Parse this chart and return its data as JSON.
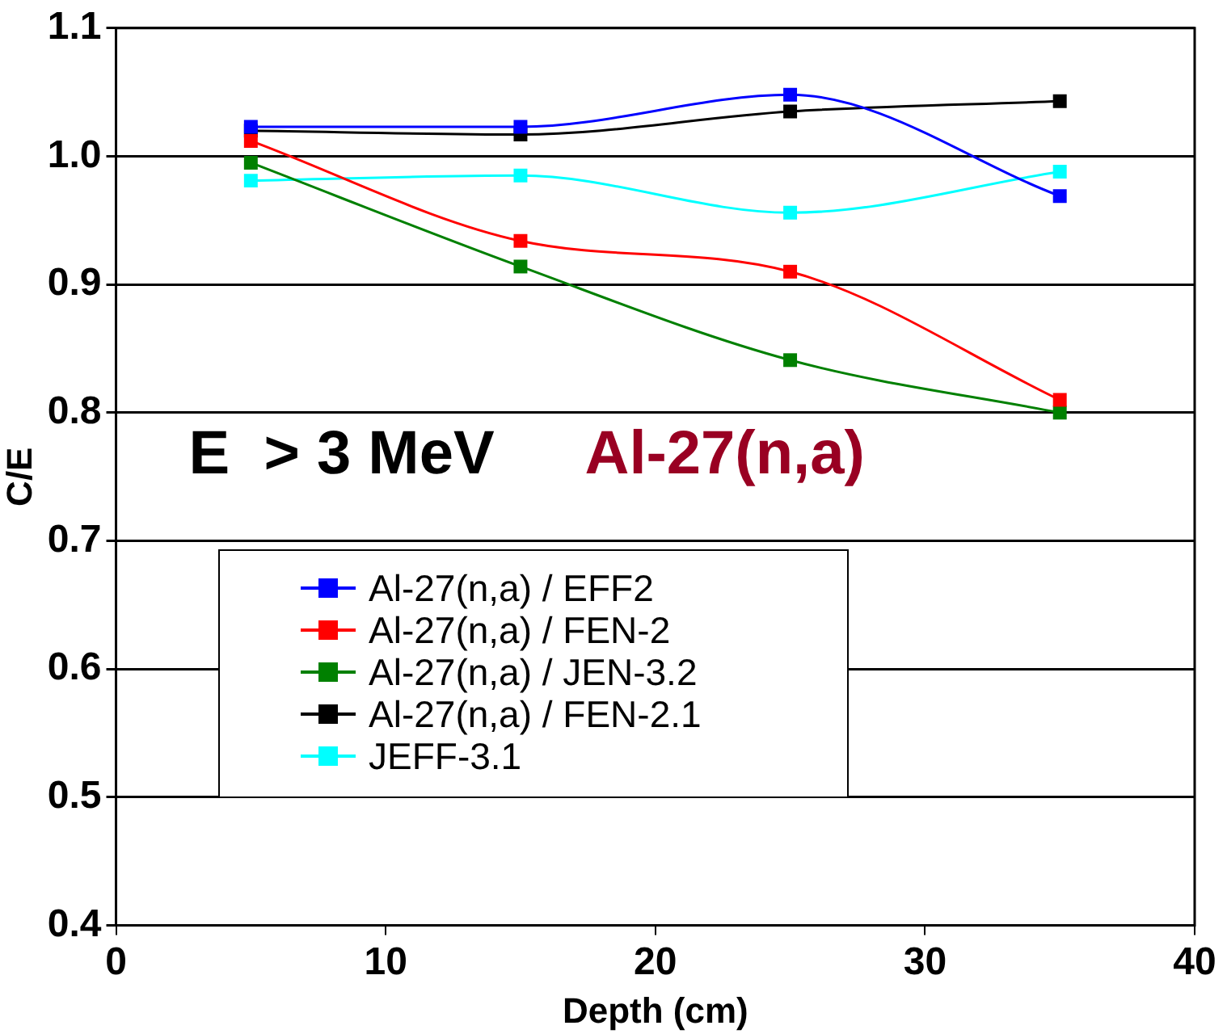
{
  "chart_data": {
    "type": "line",
    "xlabel": "Depth (cm)",
    "ylabel": "C/E",
    "x": [
      5,
      15,
      25,
      35
    ],
    "series": [
      {
        "name": "Al-27(n,a) / EFF2",
        "color": "#0000ff",
        "values": [
          1.023,
          1.023,
          1.048,
          0.969
        ]
      },
      {
        "name": "Al-27(n,a) / FEN-2",
        "color": "#ff0000",
        "values": [
          1.012,
          0.934,
          0.91,
          0.81
        ]
      },
      {
        "name": "Al-27(n,a) / JEN-3.2",
        "color": "#008000",
        "values": [
          0.995,
          0.914,
          0.841,
          0.8
        ]
      },
      {
        "name": "Al-27(n,a) / FEN-2.1",
        "color": "#000000",
        "values": [
          1.02,
          1.017,
          1.035,
          1.043
        ]
      },
      {
        "name": "JEFF-3.1",
        "color": "#00ffff",
        "values": [
          0.981,
          0.985,
          0.956,
          0.988
        ]
      }
    ],
    "xlim": [
      0,
      40
    ],
    "xticks": [
      0,
      10,
      20,
      30,
      40
    ],
    "ylim": [
      0.4,
      1.1
    ],
    "yticks": [
      {
        "value": 0.4,
        "label": "0.4"
      },
      {
        "value": 0.5,
        "label": "0.5"
      },
      {
        "value": 0.6,
        "label": "0.6"
      },
      {
        "value": 0.7,
        "label": "0.7"
      },
      {
        "value": 0.8,
        "label": "0.8"
      },
      {
        "value": 0.9,
        "label": "0.9"
      },
      {
        "value": 1.0,
        "label": "1.0"
      },
      {
        "value": 1.1,
        "label": "1.1"
      }
    ],
    "grid": "y",
    "legend": "bottom left",
    "marker": "square",
    "line_style": "solid",
    "annotations": [
      "E  > 3 MeV",
      "Al-27(n,a)"
    ]
  }
}
